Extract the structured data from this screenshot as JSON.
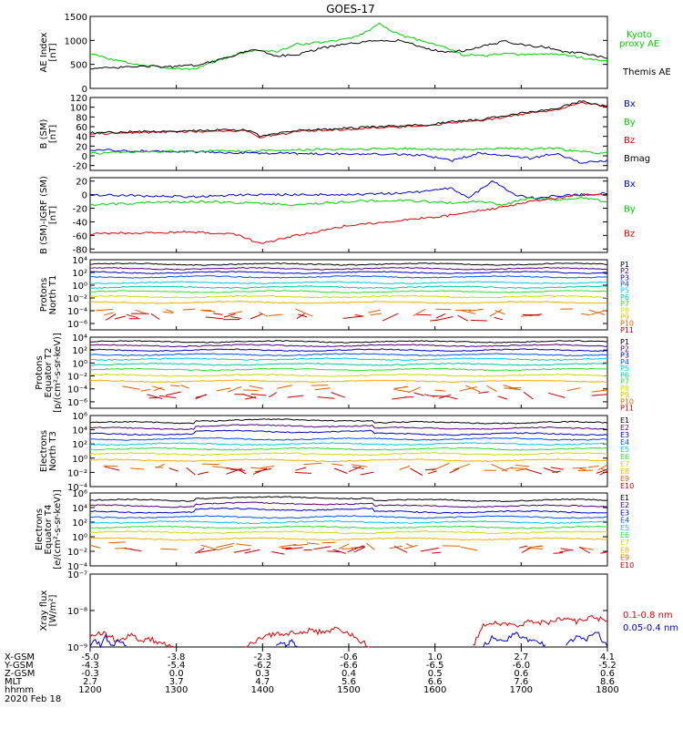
{
  "title": "GOES-17",
  "chart_data": [
    {
      "type": "line",
      "panel": "ae",
      "ylabel": [
        "AE Index",
        "[nT]"
      ],
      "ylim": [
        0,
        1500
      ],
      "yscale": "linear",
      "yticks": [
        0,
        500,
        1000,
        1500
      ],
      "yticklabels": [
        "0",
        "500",
        "1000",
        "1500"
      ],
      "series": [
        {
          "name": "Kyoto proxy AE",
          "legend": [
            "Kyoto",
            "proxy AE"
          ],
          "color": "#00d000",
          "x": [
            0,
            0.04,
            0.08,
            0.12,
            0.16,
            0.2,
            0.24,
            0.28,
            0.32,
            0.36,
            0.4,
            0.44,
            0.48,
            0.52,
            0.56,
            0.6,
            0.64,
            0.68,
            0.72,
            0.76,
            0.8,
            0.84,
            0.88,
            0.92,
            0.96,
            1
          ],
          "y": [
            720,
            610,
            520,
            460,
            420,
            400,
            560,
            700,
            800,
            760,
            920,
            950,
            1000,
            1100,
            1350,
            1100,
            1000,
            880,
            700,
            680,
            720,
            700,
            720,
            700,
            620,
            560
          ]
        },
        {
          "name": "Themis AE",
          "legend": [
            "Themis AE"
          ],
          "color": "#000000",
          "x": [
            0,
            0.04,
            0.08,
            0.12,
            0.16,
            0.2,
            0.24,
            0.28,
            0.32,
            0.36,
            0.4,
            0.44,
            0.48,
            0.52,
            0.56,
            0.6,
            0.64,
            0.68,
            0.72,
            0.76,
            0.8,
            0.84,
            0.88,
            0.92,
            0.96,
            1
          ],
          "y": [
            420,
            420,
            450,
            460,
            450,
            480,
            560,
            700,
            820,
            680,
            700,
            820,
            900,
            950,
            1000,
            1000,
            860,
            760,
            780,
            880,
            980,
            900,
            860,
            760,
            720,
            620
          ]
        }
      ]
    },
    {
      "type": "line",
      "panel": "bsm",
      "ylabel": [
        "B (SM)",
        "[nT]"
      ],
      "ylim": [
        -30,
        120
      ],
      "yscale": "linear",
      "yticks": [
        -20,
        0,
        20,
        40,
        60,
        80,
        100,
        120
      ],
      "yticklabels": [
        "-20",
        "0",
        "20",
        "40",
        "60",
        "80",
        "100",
        "120"
      ],
      "series": [
        {
          "name": "Bx",
          "legend": [
            "Bx"
          ],
          "color": "#0000e0",
          "x": [
            0,
            0.1,
            0.2,
            0.3,
            0.4,
            0.5,
            0.6,
            0.65,
            0.7,
            0.75,
            0.8,
            0.85,
            0.9,
            0.95,
            1
          ],
          "y": [
            12,
            10,
            8,
            6,
            5,
            4,
            3,
            0,
            -10,
            5,
            2,
            -5,
            5,
            -15,
            -10
          ]
        },
        {
          "name": "By",
          "legend": [
            "By"
          ],
          "color": "#00d000",
          "x": [
            0,
            0.1,
            0.2,
            0.3,
            0.4,
            0.5,
            0.6,
            0.65,
            0.7,
            0.75,
            0.8,
            0.85,
            0.9,
            0.95,
            1
          ],
          "y": [
            5,
            8,
            10,
            10,
            12,
            14,
            15,
            14,
            12,
            14,
            16,
            14,
            15,
            8,
            5
          ]
        },
        {
          "name": "Bz",
          "legend": [
            "Bz"
          ],
          "color": "#e00000",
          "x": [
            0,
            0.1,
            0.2,
            0.3,
            0.33,
            0.4,
            0.5,
            0.6,
            0.65,
            0.7,
            0.75,
            0.8,
            0.85,
            0.9,
            0.95,
            1
          ],
          "y": [
            45,
            48,
            50,
            52,
            38,
            50,
            55,
            60,
            62,
            68,
            72,
            80,
            88,
            95,
            110,
            100
          ]
        },
        {
          "name": "Bmag",
          "legend": [
            "Bmag"
          ],
          "color": "#000000",
          "x": [
            0,
            0.1,
            0.2,
            0.3,
            0.33,
            0.4,
            0.5,
            0.6,
            0.65,
            0.7,
            0.75,
            0.8,
            0.85,
            0.9,
            0.95,
            1
          ],
          "y": [
            47,
            50,
            52,
            54,
            40,
            52,
            57,
            62,
            64,
            70,
            74,
            82,
            90,
            97,
            112,
            102
          ]
        }
      ]
    },
    {
      "type": "line",
      "panel": "bsm-igrf",
      "ylabel": [
        "B (SM)-IGRF (SM)",
        "[nT]"
      ],
      "ylim": [
        -85,
        25
      ],
      "yscale": "linear",
      "yticks": [
        -80,
        -60,
        -40,
        -20,
        0,
        20
      ],
      "yticklabels": [
        "-80",
        "-60",
        "-40",
        "-20",
        "0",
        "20"
      ],
      "series": [
        {
          "name": "Bx",
          "legend": [
            "Bx"
          ],
          "color": "#0000e0",
          "x": [
            0,
            0.1,
            0.2,
            0.3,
            0.4,
            0.5,
            0.6,
            0.65,
            0.7,
            0.73,
            0.78,
            0.82,
            0.86,
            0.9,
            0.95,
            1
          ],
          "y": [
            0,
            -2,
            -3,
            0,
            0,
            0,
            2,
            5,
            10,
            -5,
            20,
            0,
            -5,
            -2,
            0,
            2
          ]
        },
        {
          "name": "By",
          "legend": [
            "By"
          ],
          "color": "#00d000",
          "x": [
            0,
            0.1,
            0.2,
            0.3,
            0.4,
            0.5,
            0.6,
            0.7,
            0.75,
            0.8,
            0.85,
            0.9,
            0.95,
            1
          ],
          "y": [
            -15,
            -12,
            -10,
            -12,
            -15,
            -10,
            -8,
            -12,
            -10,
            -15,
            -5,
            -8,
            -5,
            -10
          ]
        },
        {
          "name": "Bz",
          "legend": [
            "Bz"
          ],
          "color": "#e00000",
          "x": [
            0,
            0.1,
            0.2,
            0.28,
            0.33,
            0.4,
            0.5,
            0.6,
            0.7,
            0.8,
            0.85,
            0.9,
            0.95,
            1
          ],
          "y": [
            -58,
            -56,
            -55,
            -58,
            -72,
            -60,
            -45,
            -38,
            -30,
            -18,
            -10,
            -5,
            0,
            0
          ]
        }
      ]
    },
    {
      "type": "line",
      "panel": "protons-t1",
      "ylabel": [
        "Protons",
        "North T1"
      ],
      "yscale": "log",
      "ylim": [
        -7,
        4
      ],
      "yticks": [
        4,
        2,
        0,
        -2,
        -4,
        -6
      ],
      "yticklabels": [
        "10⁴",
        "10²",
        "10⁰",
        "10⁻²",
        "10⁻⁴",
        "10⁻⁶"
      ],
      "series": [
        {
          "name": "P1",
          "color": "#000000",
          "level": 3.3
        },
        {
          "name": "P2",
          "color": "#500078",
          "level": 2.6
        },
        {
          "name": "P3",
          "color": "#0000c8",
          "level": 2.0
        },
        {
          "name": "P4",
          "color": "#0050ff",
          "level": 1.3
        },
        {
          "name": "P5",
          "color": "#00c8e6",
          "level": 0.4
        },
        {
          "name": "P6",
          "color": "#00c8a0",
          "level": -0.3
        },
        {
          "name": "P7",
          "color": "#32dc32",
          "level": -1.0
        },
        {
          "name": "P8",
          "color": "#c8dc00",
          "level": -1.8
        },
        {
          "name": "P9",
          "color": "#f0b400",
          "level": -2.7
        },
        {
          "name": "P10",
          "color": "#e06000",
          "level": -4.3
        },
        {
          "name": "P11",
          "color": "#c80000",
          "level": -5.0
        }
      ]
    },
    {
      "type": "line",
      "panel": "protons-t2",
      "ylabel": [
        "Protons",
        "Equator T2",
        "[p/(cm²-s-sr-keV)]"
      ],
      "yscale": "log",
      "ylim": [
        -7,
        4
      ],
      "yticks": [
        4,
        2,
        0,
        -2,
        -4,
        -6
      ],
      "yticklabels": [
        "10⁴",
        "10²",
        "10⁰",
        "10⁻²",
        "10⁻⁴",
        "10⁻⁶"
      ],
      "series": [
        {
          "name": "P1",
          "color": "#000000",
          "level": 3.3
        },
        {
          "name": "P2",
          "color": "#500078",
          "level": 2.7
        },
        {
          "name": "P3",
          "color": "#0000c8",
          "level": 2.0
        },
        {
          "name": "P4",
          "color": "#0050ff",
          "level": 1.3
        },
        {
          "name": "P5",
          "color": "#00c8e6",
          "level": 0.6
        },
        {
          "name": "P6",
          "color": "#00c8a0",
          "level": -0.2
        },
        {
          "name": "P7",
          "color": "#32dc32",
          "level": -1.0
        },
        {
          "name": "P8",
          "color": "#c8dc00",
          "level": -1.9
        },
        {
          "name": "P9",
          "color": "#f0b400",
          "level": -2.8
        },
        {
          "name": "P10",
          "color": "#e06000",
          "level": -4.0
        },
        {
          "name": "P11",
          "color": "#c80000",
          "level": -5.0
        }
      ]
    },
    {
      "type": "line",
      "panel": "electrons-t3",
      "ylabel": [
        "Electrons",
        "North T3"
      ],
      "yscale": "log",
      "ylim": [
        -4,
        6
      ],
      "yticks": [
        6,
        4,
        2,
        0,
        -2,
        -4
      ],
      "yticklabels": [
        "10⁶",
        "10⁴",
        "10²",
        "10⁰",
        "10⁻²",
        "10⁻⁴"
      ],
      "series": [
        {
          "name": "E1",
          "color": "#000000",
          "level": 5.0
        },
        {
          "name": "E2",
          "color": "#500078",
          "level": 4.2
        },
        {
          "name": "E3",
          "color": "#0000c8",
          "level": 3.4
        },
        {
          "name": "E4",
          "color": "#0050ff",
          "level": 2.7
        },
        {
          "name": "E5",
          "color": "#00c8e6",
          "level": 2.0
        },
        {
          "name": "E6",
          "color": "#32dc32",
          "level": 1.3
        },
        {
          "name": "E7",
          "color": "#c8dc00",
          "level": 0.6
        },
        {
          "name": "E8",
          "color": "#f0b400",
          "level": -0.3
        },
        {
          "name": "E9",
          "color": "#e06000",
          "level": -1.3
        },
        {
          "name": "E10",
          "color": "#c80000",
          "level": -1.8
        }
      ]
    },
    {
      "type": "line",
      "panel": "electrons-t4",
      "ylabel": [
        "Electrons",
        "Equator T4",
        "[e/(cm²-s-sr-keV)]"
      ],
      "yscale": "log",
      "ylim": [
        -4,
        6
      ],
      "yticks": [
        6,
        4,
        2,
        0,
        -2,
        -4
      ],
      "yticklabels": [
        "10⁶",
        "10⁴",
        "10²",
        "10⁰",
        "10⁻²",
        "10⁻⁴"
      ],
      "series": [
        {
          "name": "E1",
          "color": "#000000",
          "level": 5.0
        },
        {
          "name": "E2",
          "color": "#500078",
          "level": 4.2
        },
        {
          "name": "E3",
          "color": "#0000c8",
          "level": 3.4
        },
        {
          "name": "E4",
          "color": "#0050ff",
          "level": 2.7
        },
        {
          "name": "E5",
          "color": "#00c8e6",
          "level": 2.0
        },
        {
          "name": "E6",
          "color": "#32dc32",
          "level": 1.3
        },
        {
          "name": "E7",
          "color": "#c8dc00",
          "level": 0.6
        },
        {
          "name": "E8",
          "color": "#f0b400",
          "level": -0.3
        },
        {
          "name": "E9",
          "color": "#e06000",
          "level": -1.3
        },
        {
          "name": "E10",
          "color": "#c80000",
          "level": -1.8
        }
      ]
    },
    {
      "type": "line",
      "panel": "xray",
      "ylabel": [
        "Xray flux",
        "[W/m²]"
      ],
      "yscale": "log",
      "ylim": [
        -9,
        -7
      ],
      "yticks": [
        -7,
        -8,
        -9
      ],
      "yticklabels": [
        "10⁻⁷",
        "10⁻⁸",
        "10⁻⁹"
      ],
      "series": [
        {
          "name": "0.1-0.8 nm",
          "legend": [
            "0.1-0.8 nm"
          ],
          "color": "#e00000",
          "segments": [
            {
              "x": [
                0.0,
                0.02,
                0.05,
                0.08,
                0.1,
                0.12,
                0.14,
                0.16
              ],
              "y": [
                -8.75,
                -8.6,
                -8.8,
                -8.7,
                -8.85,
                -8.8,
                -8.9,
                -9.0
              ]
            },
            {
              "x": [
                0.3,
                0.33,
                0.36,
                0.39,
                0.42,
                0.45,
                0.48,
                0.5,
                0.52,
                0.54
              ],
              "y": [
                -9.0,
                -8.75,
                -8.65,
                -8.6,
                -8.55,
                -8.6,
                -8.5,
                -8.6,
                -8.8,
                -9.0
              ]
            },
            {
              "x": [
                0.74,
                0.76,
                0.79,
                0.82,
                0.85,
                0.88,
                0.91,
                0.94,
                0.97,
                1.0
              ],
              "y": [
                -9.0,
                -8.4,
                -8.35,
                -8.4,
                -8.3,
                -8.35,
                -8.25,
                -8.3,
                -8.2,
                -8.25
              ]
            }
          ]
        },
        {
          "name": "0.05-0.4 nm",
          "legend": [
            "0.05-0.4 nm"
          ],
          "color": "#0000e0",
          "segments": [
            {
              "x": [
                0.0,
                0.01,
                0.02,
                0.03,
                0.04,
                0.05,
                0.06,
                0.07
              ],
              "y": [
                -9.0,
                -8.8,
                -9.0,
                -8.7,
                -9.0,
                -8.85,
                -8.9,
                -9.0
              ]
            },
            {
              "x": [
                0.36,
                0.37,
                0.38,
                0.39,
                0.4
              ],
              "y": [
                -9.0,
                -8.85,
                -9.0,
                -8.8,
                -9.0
              ]
            },
            {
              "x": [
                0.76,
                0.78,
                0.8,
                0.82,
                0.84,
                0.86,
                0.88
              ],
              "y": [
                -9.0,
                -8.7,
                -8.9,
                -8.6,
                -8.8,
                -8.75,
                -9.0
              ]
            },
            {
              "x": [
                0.92,
                0.94,
                0.96,
                0.98,
                1.0
              ],
              "y": [
                -9.0,
                -8.7,
                -8.8,
                -8.6,
                -9.0
              ]
            }
          ]
        }
      ]
    }
  ],
  "x_axis": {
    "row_labels": [
      "X-GSM",
      "Y-GSM",
      "Z-GSM",
      "MLT",
      "hhmm"
    ],
    "columns": [
      {
        "values": [
          "-5.0",
          "-4.3",
          "-0.3",
          "2.7",
          "1200"
        ]
      },
      {
        "values": [
          "-3.8",
          "-5.4",
          "0.0",
          "3.7",
          "1300"
        ]
      },
      {
        "values": [
          "-2.3",
          "-6.2",
          "0.3",
          "4.7",
          "1400"
        ]
      },
      {
        "values": [
          "-0.6",
          "-6.6",
          "0.4",
          "5.6",
          "1500"
        ]
      },
      {
        "values": [
          "1.0",
          "-6.5",
          "0.5",
          "6.6",
          "1600"
        ]
      },
      {
        "values": [
          "2.7",
          "-6.0",
          "0.6",
          "7.6",
          "1700"
        ]
      },
      {
        "values": [
          "4.1",
          "-5.2",
          "0.6",
          "8.6",
          "1800"
        ]
      }
    ],
    "date": "2020 Feb 18"
  }
}
